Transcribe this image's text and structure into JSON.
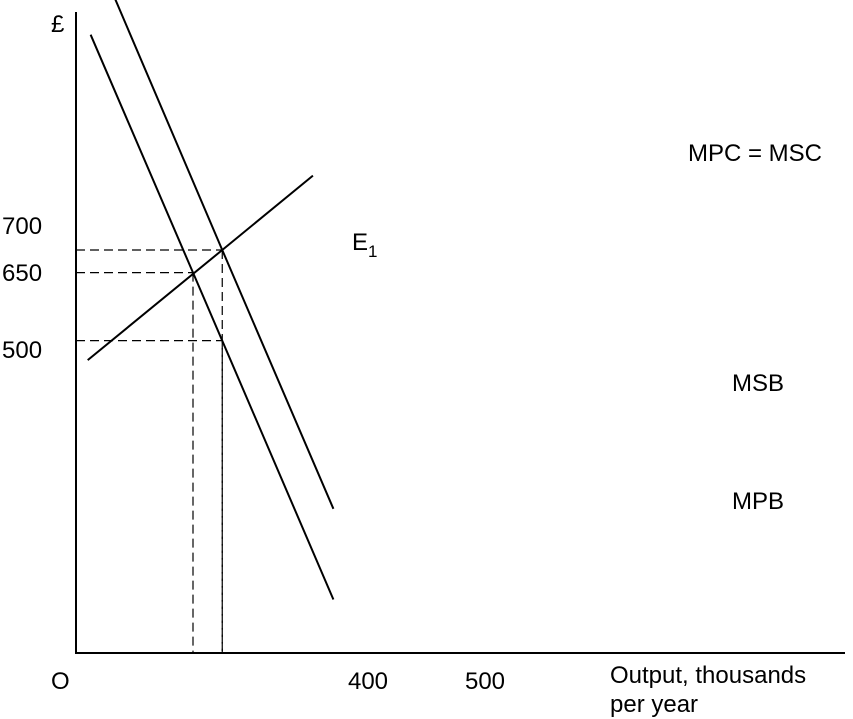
{
  "chart_data": {
    "type": "line",
    "ylabel": "£",
    "xlabel": [
      "Output, thousands",
      "per year"
    ],
    "origin_label": "O",
    "x_ticks": [
      400,
      500
    ],
    "y_ticks": [
      500,
      650,
      700
    ],
    "xlim": [
      0,
      1000
    ],
    "ylim": [
      -500,
      1350
    ],
    "guides": [
      {
        "x": 400,
        "y": 650
      },
      {
        "x": 500,
        "y": 700
      },
      {
        "x": 500,
        "y": 500
      }
    ],
    "series": [
      {
        "name": "MPC = MSC",
        "x": [
          40,
          500,
          810
        ],
        "y": [
          457,
          700,
          864
        ]
      },
      {
        "name": "MSB",
        "x": [
          90,
          500,
          880
        ],
        "y": [
          1320,
          700,
          129
        ]
      },
      {
        "name": "MPB",
        "x": [
          50,
          400,
          880
        ],
        "y": [
          1175,
          650,
          -71
        ]
      }
    ],
    "annotations": [
      {
        "label": "E",
        "subscript": "1",
        "x": 400,
        "y": 650
      }
    ]
  }
}
